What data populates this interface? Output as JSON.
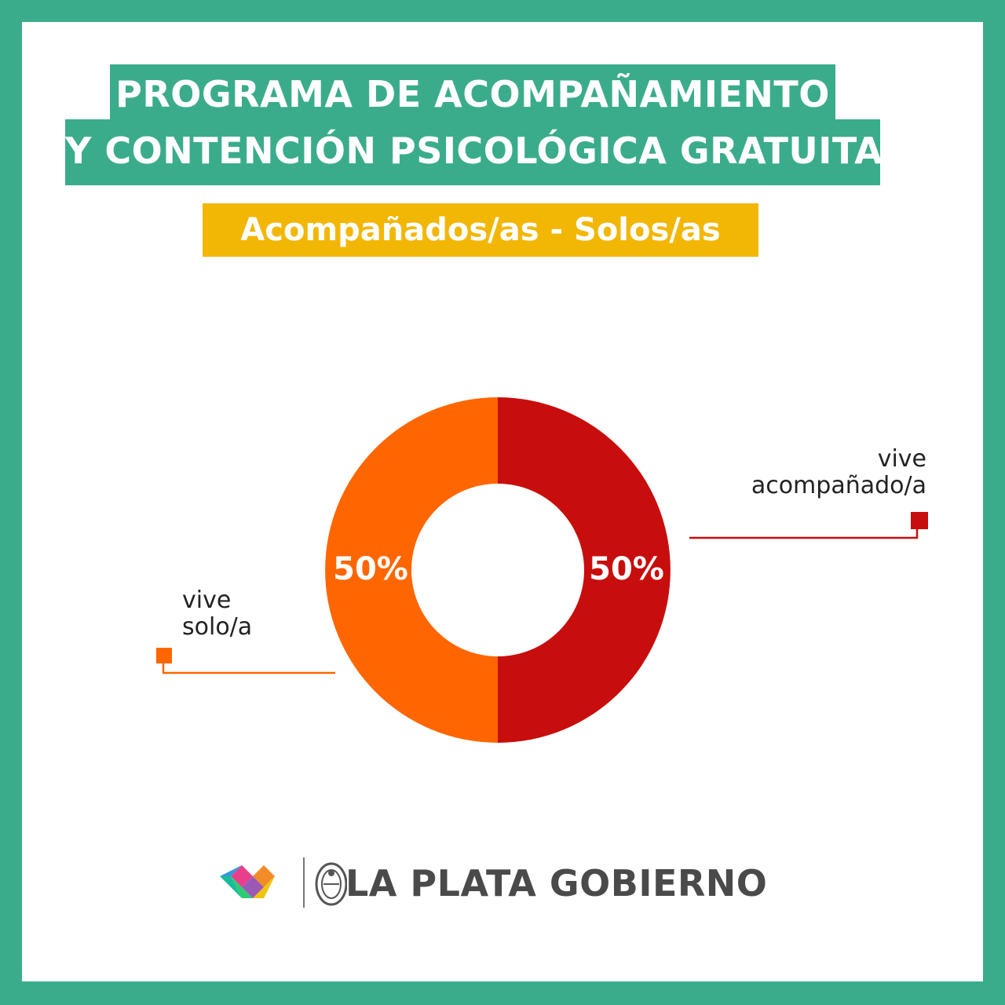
{
  "header": {
    "title_line_1": "PROGRAMA DE ACOMPAÑAMIENTO",
    "title_line_2": "Y CONTENCIÓN PSICOLÓGICA GRATUITA",
    "subtitle": "Acompañados/as - Solos/as"
  },
  "colors": {
    "frame": "#3aac8c",
    "subtitle_bg": "#f2b705",
    "acompanado": "#c80d0d",
    "solo": "#ff6600"
  },
  "chart_data": {
    "type": "pie",
    "title": "Acompañados/as - Solos/as",
    "slices": [
      {
        "label_line_1": "vive",
        "label_line_2": "acompañado/a",
        "value": 50,
        "value_label": "50%",
        "color": "#c80d0d"
      },
      {
        "label_line_1": "vive",
        "label_line_2": "solo/a",
        "value": 50,
        "value_label": "50%",
        "color": "#ff6600"
      }
    ]
  },
  "footer": {
    "brand": "LA PLATA GOBIERNO",
    "logo_icon": "heart-logo-icon",
    "seal_icon": "seal-icon"
  }
}
